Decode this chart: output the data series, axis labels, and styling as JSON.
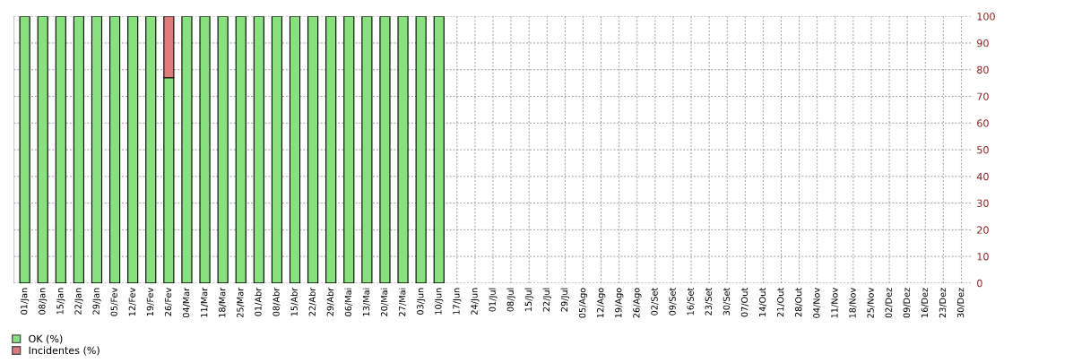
{
  "chart_data": {
    "type": "bar",
    "stacked": true,
    "categories": [
      "01/Jan",
      "08/Jan",
      "15/Jan",
      "22/Jan",
      "29/Jan",
      "05/Fev",
      "12/Fev",
      "19/Fev",
      "26/Fev",
      "04/Mar",
      "11/Mar",
      "18/Mar",
      "25/Mar",
      "01/Abr",
      "08/Abr",
      "15/Abr",
      "22/Abr",
      "29/Abr",
      "06/Mai",
      "13/Mai",
      "20/Mai",
      "27/Mai",
      "03/Jun",
      "10/Jun",
      "17/Jun",
      "24/Jun",
      "01/Jul",
      "08/Jul",
      "15/Jul",
      "22/Jul",
      "29/Jul",
      "05/Ago",
      "12/Ago",
      "19/Ago",
      "26/Ago",
      "02/Set",
      "09/Set",
      "16/Set",
      "23/Set",
      "30/Set",
      "07/Out",
      "14/Out",
      "21/Out",
      "28/Out",
      "04/Nov",
      "11/Nov",
      "18/Nov",
      "25/Nov",
      "02/Dez",
      "09/Dez",
      "16/Dez",
      "23/Dez",
      "30/Dez"
    ],
    "series": [
      {
        "name": "OK (%)",
        "color": "#88e07f",
        "values": [
          100,
          100,
          100,
          100,
          100,
          100,
          100,
          100,
          77,
          100,
          100,
          100,
          100,
          100,
          100,
          100,
          100,
          100,
          100,
          100,
          100,
          100,
          100,
          100,
          null,
          null,
          null,
          null,
          null,
          null,
          null,
          null,
          null,
          null,
          null,
          null,
          null,
          null,
          null,
          null,
          null,
          null,
          null,
          null,
          null,
          null,
          null,
          null,
          null,
          null,
          null,
          null,
          null
        ]
      },
      {
        "name": "Incidentes (%)",
        "color": "#e07b7b",
        "values": [
          0,
          0,
          0,
          0,
          0,
          0,
          0,
          0,
          23,
          0,
          0,
          0,
          0,
          0,
          0,
          0,
          0,
          0,
          0,
          0,
          0,
          0,
          0,
          0,
          null,
          null,
          null,
          null,
          null,
          null,
          null,
          null,
          null,
          null,
          null,
          null,
          null,
          null,
          null,
          null,
          null,
          null,
          null,
          null,
          null,
          null,
          null,
          null,
          null,
          null,
          null,
          null,
          null
        ]
      }
    ],
    "ylim": [
      0,
      100
    ],
    "yticks": [
      0,
      10,
      20,
      30,
      40,
      50,
      60,
      70,
      80,
      90,
      100
    ],
    "grid": true,
    "legend": "bottom left"
  }
}
